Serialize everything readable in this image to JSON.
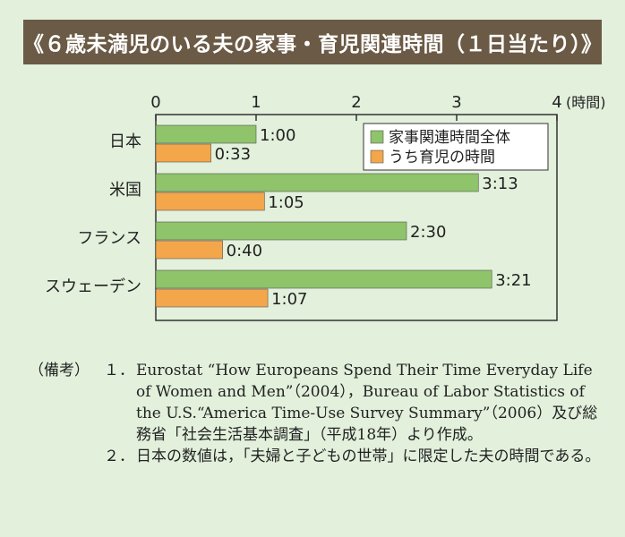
{
  "title": "《６歳未満児のいる夫の家事・育児関連時間（１日当たり）》",
  "chart_data": {
    "type": "bar",
    "orientation": "horizontal",
    "categories": [
      "日本",
      "米国",
      "フランス",
      "スウェーデン"
    ],
    "series": [
      {
        "name": "家事関連時間全体",
        "values": [
          1.0,
          3.2167,
          2.5,
          3.35
        ],
        "labels": [
          "1:00",
          "3:13",
          "2:30",
          "3:21"
        ],
        "color": "#8fc46a"
      },
      {
        "name": "うち育児の時間",
        "values": [
          0.55,
          1.0833,
          0.6667,
          1.1167
        ],
        "labels": [
          "0:33",
          "1:05",
          "0:40",
          "1:07"
        ],
        "color": "#f4a64a"
      }
    ],
    "x_ticks": [
      "0",
      "1",
      "2",
      "3",
      "4"
    ],
    "x_unit": "(時間)",
    "xlim": [
      0,
      4
    ],
    "legend_position": "top-right",
    "grid": false
  },
  "notes": {
    "header": "（備考）",
    "items": [
      {
        "num": "１．",
        "text": "Eurostat “How Europeans Spend Their Time Everyday Life of Women and Men”（2004），Bureau of Labor Statistics of the U.S.“America Time-Use Survey Summary”（2006）及び総務省「社会生活基本調査」（平成18年）より作成。"
      },
      {
        "num": "２．",
        "text": "日本の数値は，「夫婦と子どもの世帯」に限定した夫の時間である。"
      }
    ]
  }
}
